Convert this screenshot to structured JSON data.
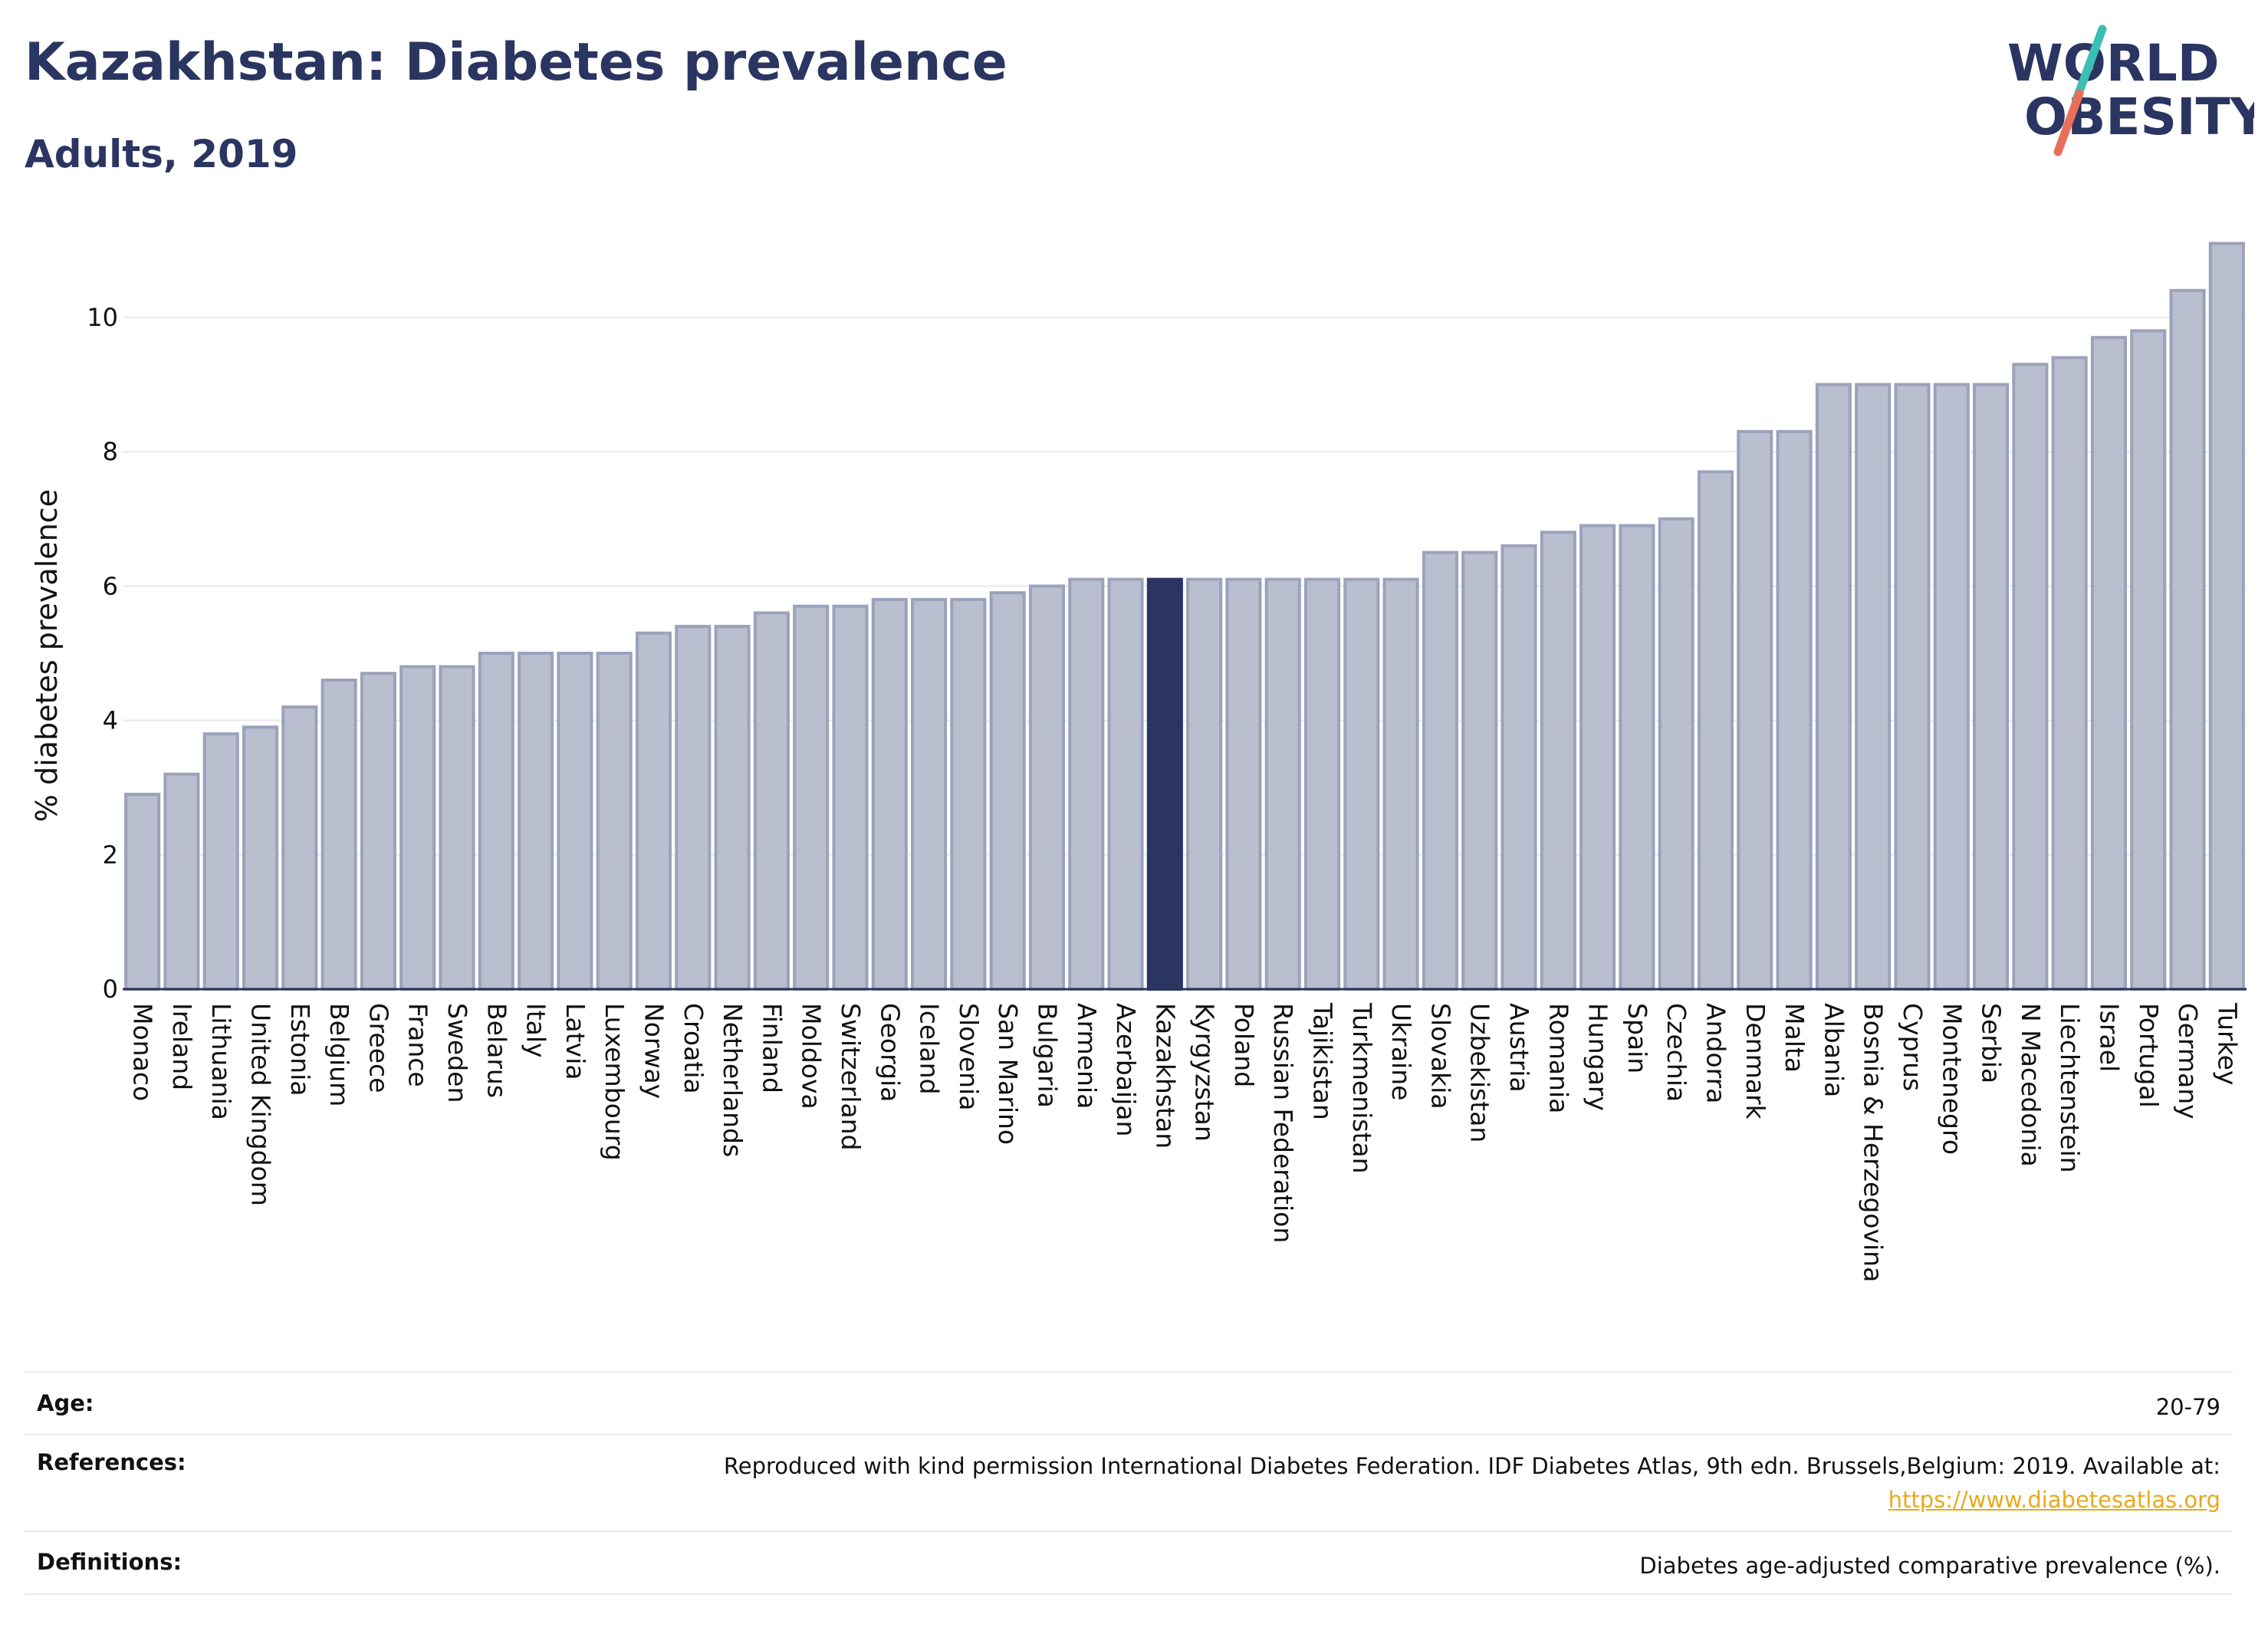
{
  "header": {
    "title": "Kazakhstan: Diabetes prevalence",
    "subtitle": "Adults, 2019"
  },
  "logo": {
    "line1": "WORLD",
    "line2": "OBESITY",
    "text_color": "#2a3561",
    "slash_colors": [
      "#3bbfb4",
      "#e8705a"
    ]
  },
  "colors": {
    "bar": "#babfcf",
    "bar_stroke": "#9ba2bb",
    "highlight": "#2a3561",
    "grid": "#e6e9ee",
    "axis": "#2a3561"
  },
  "chart_data": {
    "type": "bar",
    "ylabel": "% diabetes prevalence",
    "xlabel": "",
    "ylim": [
      0,
      11.3
    ],
    "yticks": [
      0,
      2,
      4,
      6,
      8,
      10
    ],
    "grid": true,
    "highlight": "Kazakhstan",
    "categories": [
      "Monaco",
      "Ireland",
      "Lithuania",
      "United Kingdom",
      "Estonia",
      "Belgium",
      "Greece",
      "France",
      "Sweden",
      "Belarus",
      "Italy",
      "Latvia",
      "Luxembourg",
      "Norway",
      "Croatia",
      "Netherlands",
      "Finland",
      "Moldova",
      "Switzerland",
      "Georgia",
      "Iceland",
      "Slovenia",
      "San Marino",
      "Bulgaria",
      "Armenia",
      "Azerbaijan",
      "Kazakhstan",
      "Kyrgyzstan",
      "Poland",
      "Russian Federation",
      "Tajikistan",
      "Turkmenistan",
      "Ukraine",
      "Slovakia",
      "Uzbekistan",
      "Austria",
      "Romania",
      "Hungary",
      "Spain",
      "Czechia",
      "Andorra",
      "Denmark",
      "Malta",
      "Albania",
      "Bosnia & Herzegovina",
      "Cyprus",
      "Montenegro",
      "Serbia",
      "N Macedonia",
      "Liechtenstein",
      "Israel",
      "Portugal",
      "Germany",
      "Turkey"
    ],
    "values": [
      2.9,
      3.2,
      3.8,
      3.9,
      4.2,
      4.6,
      4.7,
      4.8,
      4.8,
      5.0,
      5.0,
      5.0,
      5.0,
      5.3,
      5.4,
      5.4,
      5.6,
      5.7,
      5.7,
      5.8,
      5.8,
      5.8,
      5.9,
      6.0,
      6.1,
      6.1,
      6.1,
      6.1,
      6.1,
      6.1,
      6.1,
      6.1,
      6.1,
      6.5,
      6.5,
      6.6,
      6.8,
      6.9,
      6.9,
      7.0,
      7.7,
      8.3,
      8.3,
      9.0,
      9.0,
      9.0,
      9.0,
      9.0,
      9.3,
      9.4,
      9.7,
      9.8,
      10.4,
      11.1
    ]
  },
  "info": {
    "rows": [
      {
        "key": "Age:",
        "value": "20-79",
        "link": ""
      },
      {
        "key": "References:",
        "value": "Reproduced with kind permission International Diabetes Federation. IDF Diabetes Atlas, 9th edn. Brussels,Belgium: 2019. Available at:",
        "link": "https://www.diabetesatlas.org"
      },
      {
        "key": "Definitions:",
        "value": "Diabetes age-adjusted comparative prevalence (%).",
        "link": ""
      }
    ]
  }
}
